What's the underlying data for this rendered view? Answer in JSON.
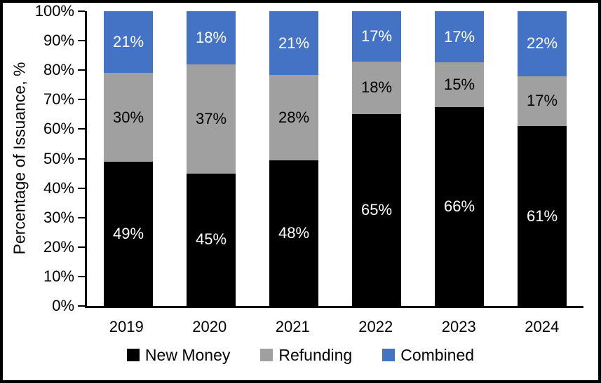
{
  "chart_data": {
    "type": "bar",
    "stacked": true,
    "title": "",
    "xlabel": "",
    "ylabel": "Percentage of Issuance, %",
    "ylim": [
      0,
      100
    ],
    "yticks": [
      "100%",
      "90%",
      "80%",
      "70%",
      "60%",
      "50%",
      "40%",
      "30%",
      "20%",
      "10%",
      "0%"
    ],
    "grid": false,
    "legend_position": "bottom",
    "label_suffix": "%",
    "categories": [
      "2019",
      "2020",
      "2021",
      "2022",
      "2023",
      "2024"
    ],
    "series": [
      {
        "name": "New Money",
        "color": "#000000",
        "label_color": "#FFFFFF",
        "values": [
          49,
          45,
          48,
          65,
          66,
          61
        ]
      },
      {
        "name": "Refunding",
        "color": "#A0A0A0",
        "label_color": "#000000",
        "values": [
          30,
          37,
          28,
          18,
          15,
          17
        ]
      },
      {
        "name": "Combined",
        "color": "#4472C4",
        "label_color": "#FFFFFF",
        "values": [
          21,
          18,
          21,
          17,
          17,
          22
        ]
      }
    ]
  }
}
